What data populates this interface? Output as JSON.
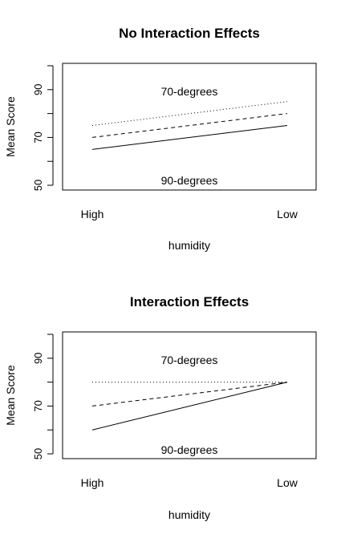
{
  "chart_data": [
    {
      "type": "line",
      "title": "No Interaction Effects",
      "xlabel": "humidity",
      "ylabel": "Mean Score",
      "categories": [
        "High",
        "Low"
      ],
      "ylim": [
        48,
        101
      ],
      "yticks": [
        50,
        60,
        70,
        80,
        90,
        100
      ],
      "ytick_labels": [
        "50",
        "",
        "70",
        "",
        "90",
        ""
      ],
      "grid": false,
      "annotations": [
        "70-degrees",
        "90-degrees"
      ],
      "series": [
        {
          "values": [
            75,
            85
          ],
          "style": "dotted"
        },
        {
          "values": [
            70,
            80
          ],
          "style": "dashed"
        },
        {
          "values": [
            65,
            75
          ],
          "style": "solid"
        }
      ]
    },
    {
      "type": "line",
      "title": "Interaction Effects",
      "xlabel": "humidity",
      "ylabel": "Mean Score",
      "categories": [
        "High",
        "Low"
      ],
      "ylim": [
        48,
        101
      ],
      "yticks": [
        50,
        60,
        70,
        80,
        90,
        100
      ],
      "ytick_labels": [
        "50",
        "",
        "70",
        "",
        "90",
        ""
      ],
      "grid": false,
      "annotations": [
        "70-degrees",
        "90-degrees"
      ],
      "series": [
        {
          "values": [
            80,
            80
          ],
          "style": "dotted"
        },
        {
          "values": [
            70,
            80
          ],
          "style": "dashed"
        },
        {
          "values": [
            60,
            80
          ],
          "style": "solid"
        }
      ]
    }
  ]
}
